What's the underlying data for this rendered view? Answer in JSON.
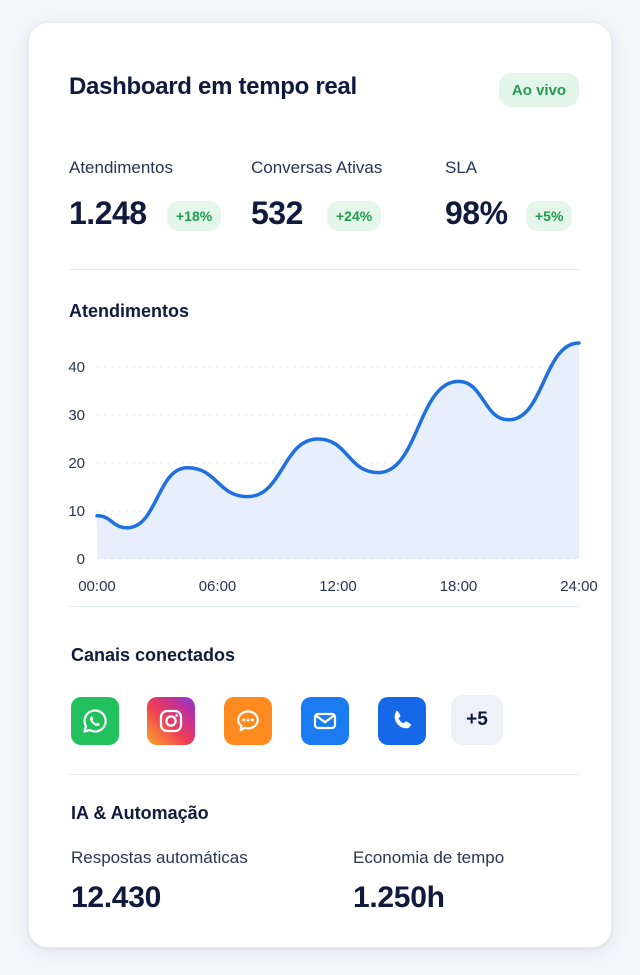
{
  "header": {
    "title": "Dashboard em tempo real",
    "live_badge": "Ao vivo"
  },
  "kpis": [
    {
      "label": "Atendimentos",
      "value": "1.248",
      "delta": "+18%"
    },
    {
      "label": "Conversas Ativas",
      "value": "532",
      "delta": "+24%"
    },
    {
      "label": "SLA",
      "value": "98%",
      "delta": "+5%"
    }
  ],
  "chart_section": {
    "title": "Atendimentos"
  },
  "chart_data": {
    "type": "area",
    "title": "Atendimentos",
    "x_tick_labels": [
      "00:00",
      "06:00",
      "12:00",
      "18:00",
      "24:00"
    ],
    "y_ticks": [
      0,
      10,
      20,
      30,
      40
    ],
    "ylim": [
      0,
      45
    ],
    "xlim": [
      0,
      24
    ],
    "grid": true,
    "line_color": "#1f6fe0",
    "fill_color": "#dfe9fb",
    "x": [
      0,
      1.5,
      4.5,
      7.5,
      11,
      14,
      18,
      20.5,
      24
    ],
    "values": [
      9,
      6.5,
      19,
      13,
      25,
      18,
      37,
      29,
      45
    ]
  },
  "channels": {
    "title": "Canais conectados",
    "items": [
      {
        "name": "whatsapp-icon",
        "color": "#22c15e"
      },
      {
        "name": "instagram-icon",
        "color": "#d62f7f"
      },
      {
        "name": "chat-icon",
        "color": "#ff8a1f"
      },
      {
        "name": "email-icon",
        "color": "#1a7cf0"
      },
      {
        "name": "phone-icon",
        "color": "#1568e8"
      }
    ],
    "more_label": "+5"
  },
  "ai": {
    "title": "IA & Automação",
    "stats": [
      {
        "label": "Respostas automáticas",
        "value": "12.430"
      },
      {
        "label": "Economia de tempo",
        "value": "1.250h"
      }
    ]
  }
}
